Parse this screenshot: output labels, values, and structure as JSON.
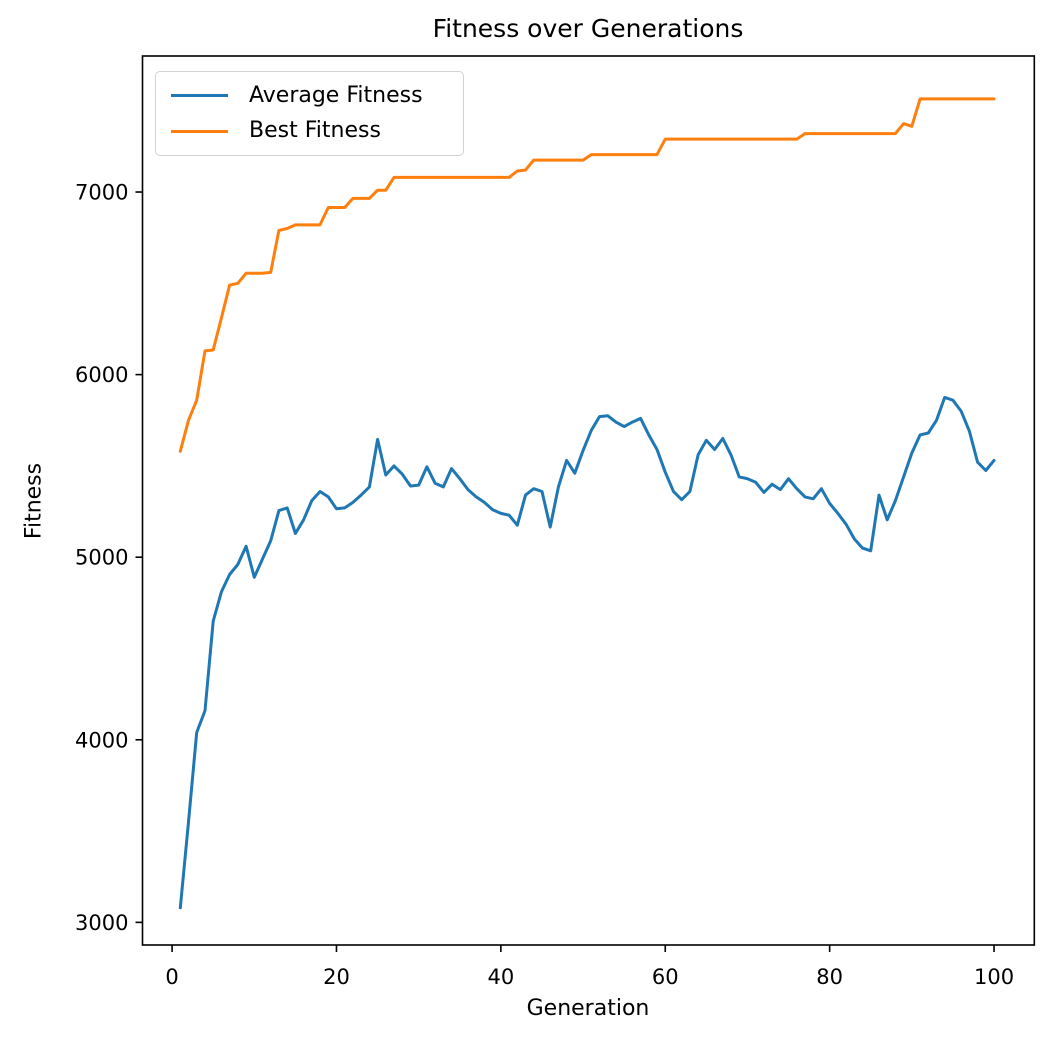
{
  "figure": {
    "title": "Fitness over Generations",
    "xlabel": "Generation",
    "ylabel": "Fitness"
  },
  "legend": {
    "position": "upper-left",
    "entries": [
      {
        "label": "Average Fitness",
        "color": "#1f77b4"
      },
      {
        "label": "Best Fitness",
        "color": "#ff7f0e"
      }
    ]
  },
  "chart_data": {
    "type": "line",
    "title": "Fitness over Generations",
    "xlabel": "Generation",
    "ylabel": "Fitness",
    "grid": false,
    "legend_position": "upper-left",
    "x_start": 1,
    "x_step": 1,
    "x_end": 100,
    "x_ticks": [
      0,
      20,
      40,
      60,
      80,
      100
    ],
    "y_ticks": [
      3000,
      4000,
      5000,
      6000,
      7000
    ],
    "xlim": [
      -3.6,
      104.9
    ],
    "ylim": [
      2876,
      7745
    ],
    "series": [
      {
        "name": "Average Fitness",
        "color": "#1f77b4",
        "values": [
          3080,
          3550,
          4040,
          4160,
          4650,
          4810,
          4905,
          4960,
          5060,
          4890,
          4990,
          5090,
          5255,
          5270,
          5130,
          5205,
          5310,
          5360,
          5330,
          5265,
          5270,
          5300,
          5340,
          5385,
          5645,
          5450,
          5500,
          5455,
          5390,
          5395,
          5495,
          5405,
          5385,
          5485,
          5430,
          5370,
          5330,
          5300,
          5260,
          5240,
          5230,
          5175,
          5340,
          5375,
          5360,
          5165,
          5385,
          5530,
          5460,
          5585,
          5695,
          5770,
          5775,
          5740,
          5715,
          5740,
          5760,
          5670,
          5590,
          5465,
          5360,
          5315,
          5360,
          5560,
          5640,
          5590,
          5650,
          5560,
          5440,
          5430,
          5410,
          5355,
          5400,
          5370,
          5430,
          5375,
          5330,
          5320,
          5375,
          5295,
          5240,
          5180,
          5100,
          5050,
          5035,
          5340,
          5205,
          5310,
          5440,
          5570,
          5670,
          5680,
          5750,
          5875,
          5860,
          5800,
          5690,
          5520,
          5475,
          5530
        ]
      },
      {
        "name": "Best Fitness",
        "color": "#ff7f0e",
        "values": [
          5580,
          5750,
          5860,
          6130,
          6135,
          6310,
          6490,
          6500,
          6555,
          6555,
          6555,
          6560,
          6790,
          6800,
          6820,
          6820,
          6820,
          6820,
          6915,
          6915,
          6915,
          6965,
          6965,
          6965,
          7010,
          7010,
          7080,
          7080,
          7080,
          7080,
          7080,
          7080,
          7080,
          7080,
          7080,
          7080,
          7080,
          7080,
          7080,
          7080,
          7080,
          7115,
          7120,
          7175,
          7175,
          7175,
          7175,
          7175,
          7175,
          7175,
          7205,
          7205,
          7205,
          7205,
          7205,
          7205,
          7205,
          7205,
          7205,
          7290,
          7290,
          7290,
          7290,
          7290,
          7290,
          7290,
          7290,
          7290,
          7290,
          7290,
          7290,
          7290,
          7290,
          7290,
          7290,
          7290,
          7320,
          7320,
          7320,
          7320,
          7320,
          7320,
          7320,
          7320,
          7320,
          7320,
          7320,
          7320,
          7375,
          7360,
          7510,
          7510,
          7510,
          7510,
          7510,
          7510,
          7510,
          7510,
          7510,
          7510
        ]
      }
    ]
  }
}
